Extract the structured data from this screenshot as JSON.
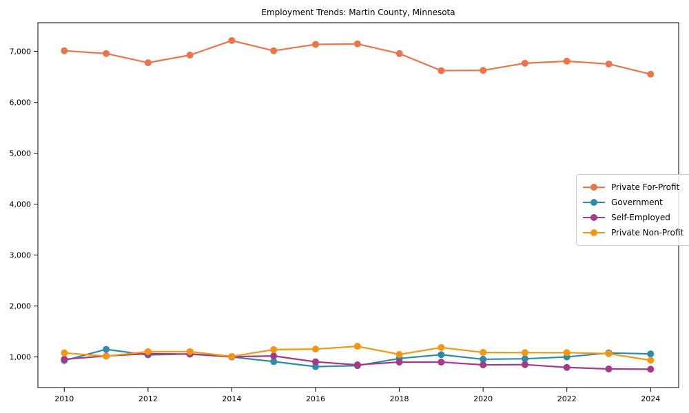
{
  "title": "Employment Trends: Martin County, Minnesota",
  "chart_data": {
    "type": "line",
    "title": "Employment Trends: Martin County, Minnesota",
    "xlabel": "",
    "ylabel": "",
    "x": [
      2010,
      2011,
      2012,
      2013,
      2014,
      2015,
      2016,
      2017,
      2018,
      2019,
      2020,
      2021,
      2022,
      2023,
      2024
    ],
    "series": [
      {
        "name": "Private For-Profit",
        "color": "#ec7448",
        "values": [
          7010,
          6955,
          6775,
          6925,
          7210,
          7010,
          7135,
          7145,
          6955,
          6620,
          6625,
          6765,
          6805,
          6750,
          6550
        ]
      },
      {
        "name": "Government",
        "color": "#2c8ba6",
        "values": [
          930,
          1150,
          1040,
          1060,
          1000,
          910,
          810,
          830,
          970,
          1045,
          955,
          965,
          1000,
          1080,
          1060
        ]
      },
      {
        "name": "Self-Employed",
        "color": "#a63a86",
        "values": [
          955,
          1020,
          1065,
          1055,
          1005,
          1020,
          905,
          845,
          900,
          900,
          845,
          850,
          795,
          765,
          760
        ]
      },
      {
        "name": "Private Non-Profit",
        "color": "#f39712",
        "values": [
          1080,
          1015,
          1105,
          1105,
          1010,
          1145,
          1155,
          1210,
          1050,
          1185,
          1090,
          1085,
          1085,
          1065,
          935
        ]
      }
    ],
    "xlim": [
      2009.37,
      2024.67
    ],
    "ylim": [
      400,
      7560
    ],
    "xticks": {
      "values": [
        2010,
        2012,
        2014,
        2016,
        2018,
        2020,
        2022,
        2024
      ],
      "labels": [
        "2010",
        "2012",
        "2014",
        "2016",
        "2018",
        "2020",
        "2022",
        "2024"
      ]
    },
    "yticks": {
      "values": [
        1000,
        2000,
        3000,
        4000,
        5000,
        6000,
        7000
      ],
      "labels": [
        "1,000",
        "2,000",
        "3,000",
        "4,000",
        "5,000",
        "6,000",
        "7,000"
      ]
    },
    "grid": false,
    "legend_position": "center right",
    "marker": "o"
  },
  "colors": {
    "axis": "#000000",
    "tick_label": "#000000",
    "legend_border": "#cccccc",
    "background": "#ffffff"
  }
}
